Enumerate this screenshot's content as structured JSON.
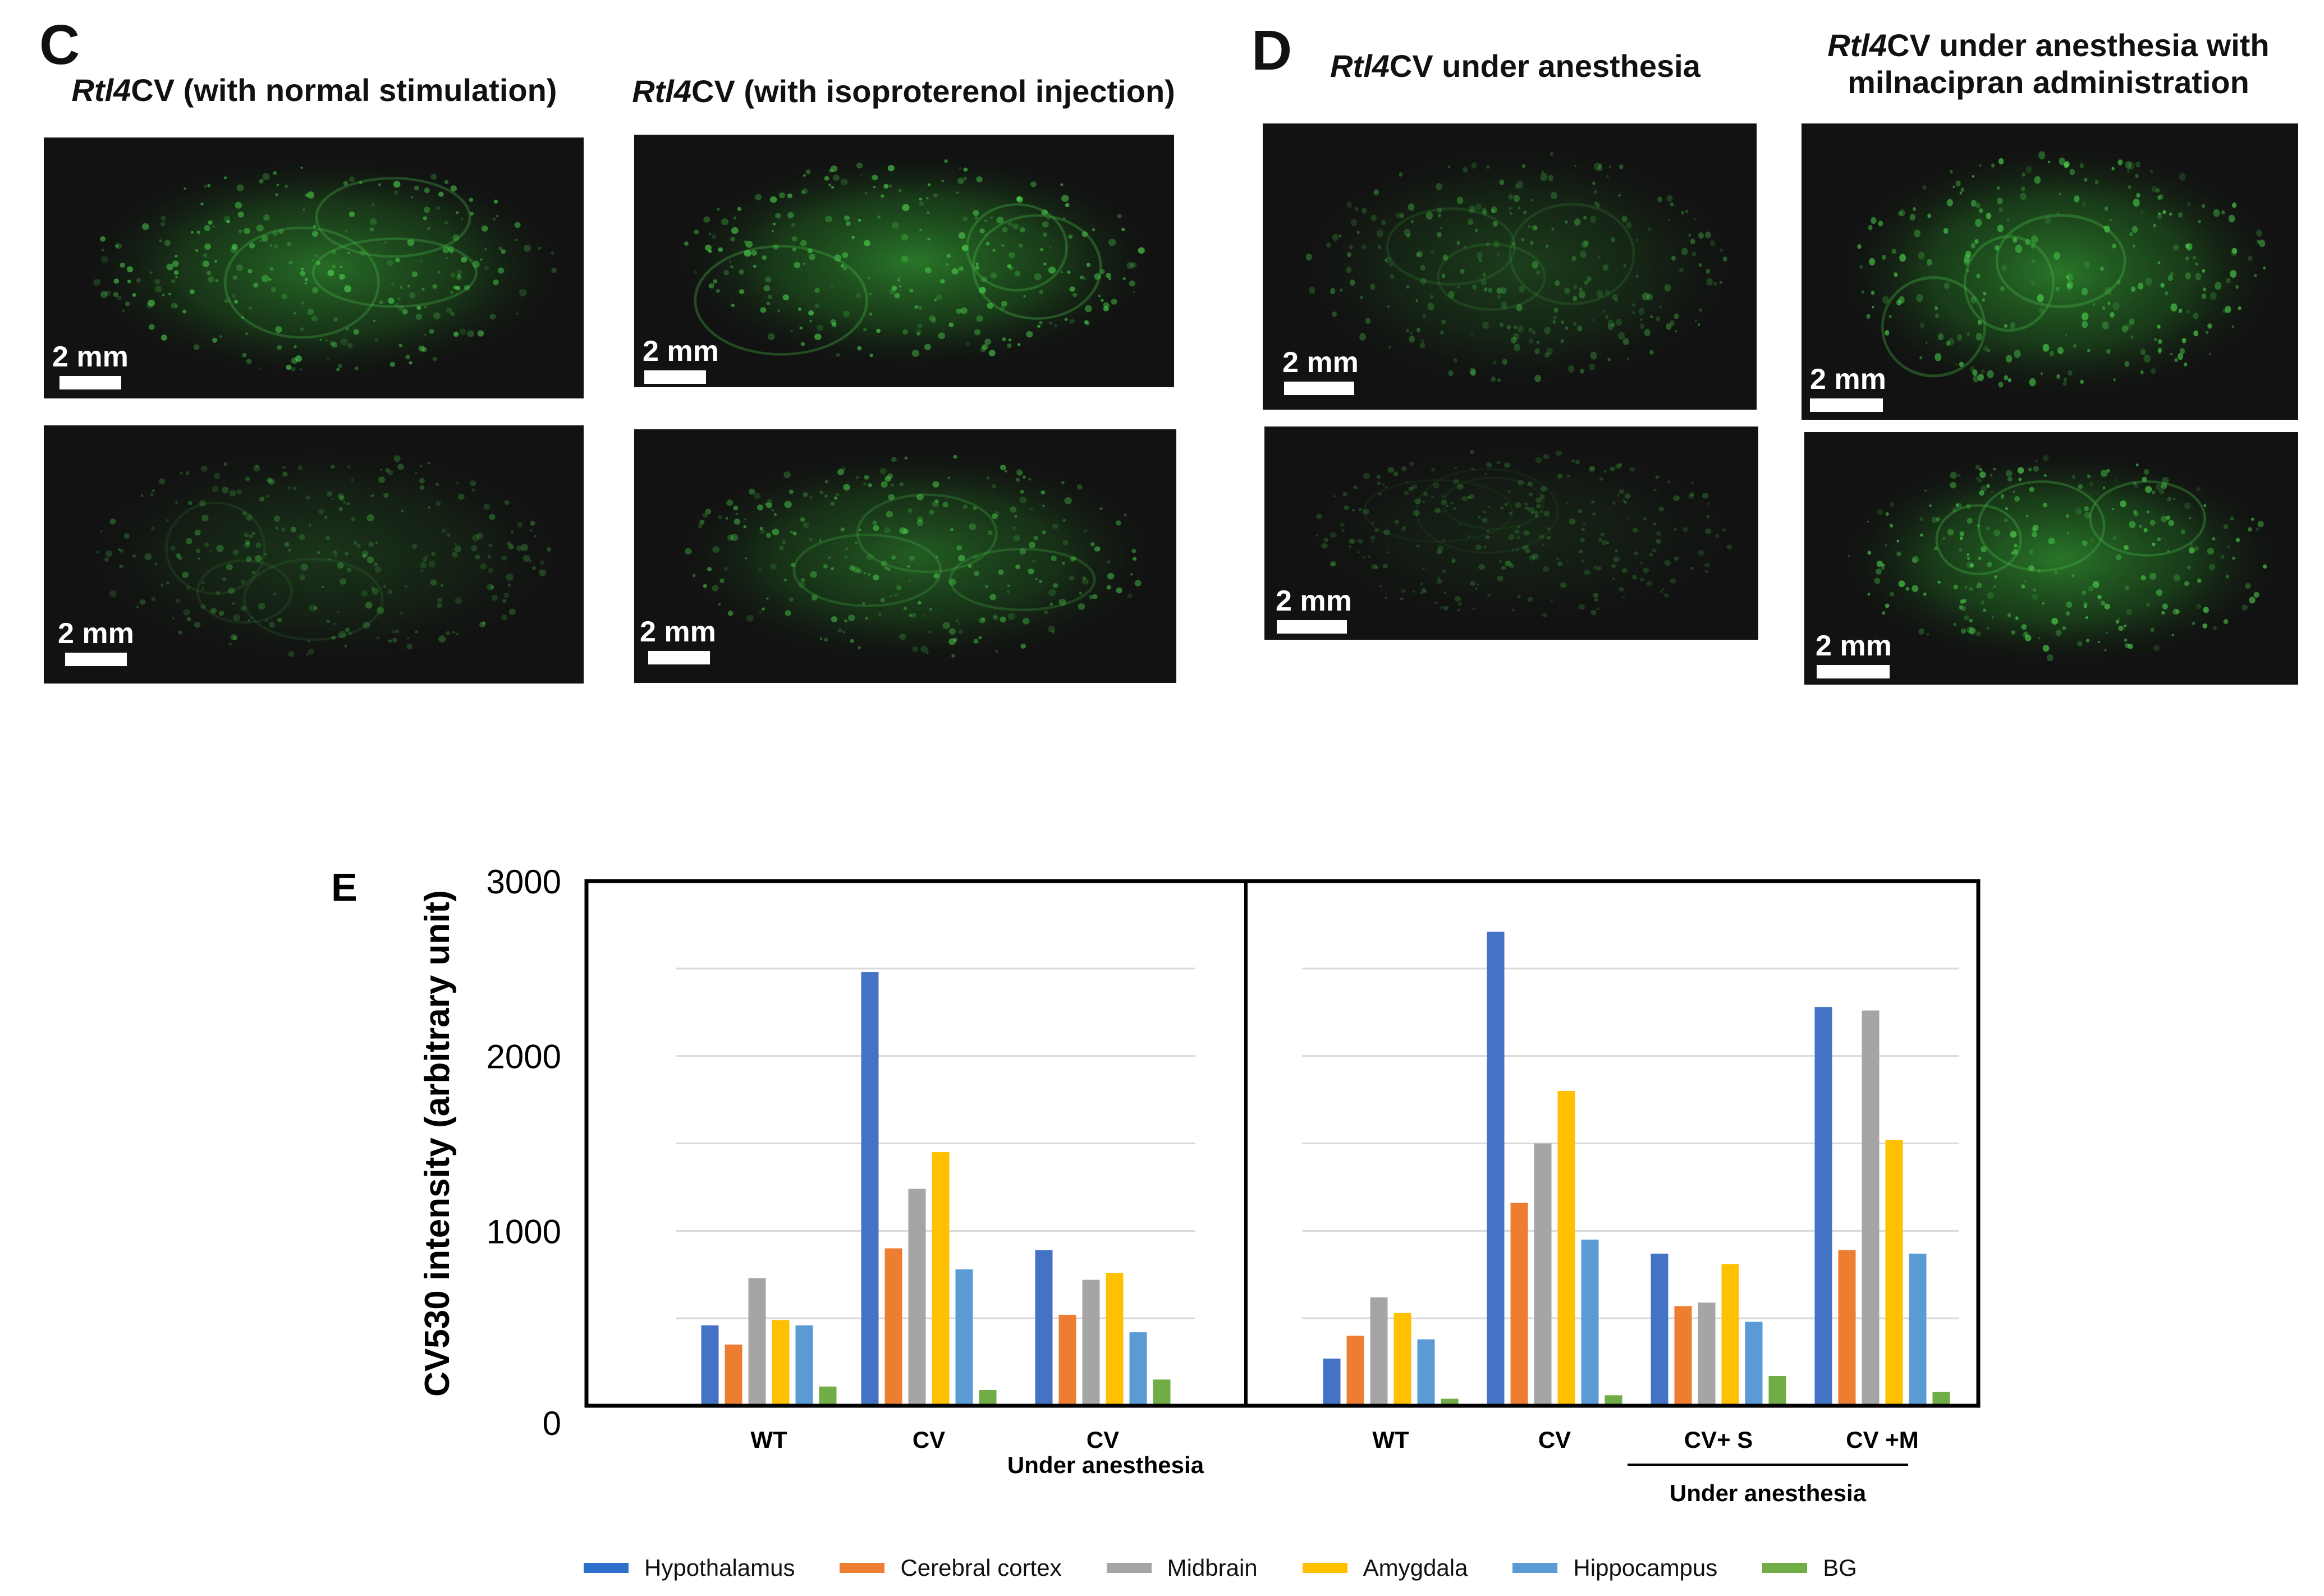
{
  "panels": {
    "C": {
      "letter": "C",
      "left_caption_italic": "Rtl4",
      "left_caption_rest": "CV (with normal stimulation)",
      "right_caption_italic": "Rtl4",
      "right_caption_rest": "CV (with isoproterenol injection)"
    },
    "D": {
      "letter": "D",
      "left_caption_italic": "Rtl4",
      "left_caption_rest": "CV under anesthesia",
      "right_caption_italic": "Rtl4",
      "right_caption_line1_rest": "CV under anesthesia with",
      "right_caption_line2": "milnacipran administration"
    },
    "E": {
      "letter": "E"
    },
    "scale_label": "2 mm"
  },
  "chart_data": {
    "type": "bar",
    "ylabel": "CV530 intensity (arbitrary unit)",
    "ylim": [
      0,
      3000
    ],
    "yticks": [
      0,
      1000,
      2000,
      3000
    ],
    "grid": true,
    "legend_position": "bottom",
    "series_names": [
      "Hypothalamus",
      "Cerebral cortex",
      "Midbrain",
      "Amygdala",
      "Hippocampus",
      "BG"
    ],
    "colors": [
      "#4472c4",
      "#ed7d31",
      "#a5a5a5",
      "#ffc000",
      "#5b9bd5",
      "#70ad47"
    ],
    "left_panel": {
      "groups": [
        {
          "label": "WT",
          "sublabel": "",
          "values": [
            460,
            350,
            730,
            490,
            460,
            110
          ]
        },
        {
          "label": "CV",
          "sublabel": "",
          "values": [
            2480,
            900,
            1240,
            1450,
            780,
            90
          ]
        },
        {
          "label": "CV",
          "sublabel": "Under anesthesia",
          "values": [
            890,
            520,
            720,
            760,
            420,
            150
          ]
        }
      ]
    },
    "right_panel": {
      "groups": [
        {
          "label": "WT",
          "values": [
            270,
            400,
            620,
            530,
            380,
            40
          ]
        },
        {
          "label": "CV",
          "values": [
            2710,
            1160,
            1500,
            1800,
            950,
            60
          ]
        },
        {
          "label": "CV+ S",
          "values": [
            870,
            570,
            590,
            810,
            480,
            170
          ]
        },
        {
          "label": "CV +M",
          "values": [
            2280,
            890,
            2260,
            1520,
            870,
            80
          ]
        }
      ],
      "bracket_label": "Under anesthesia"
    }
  }
}
